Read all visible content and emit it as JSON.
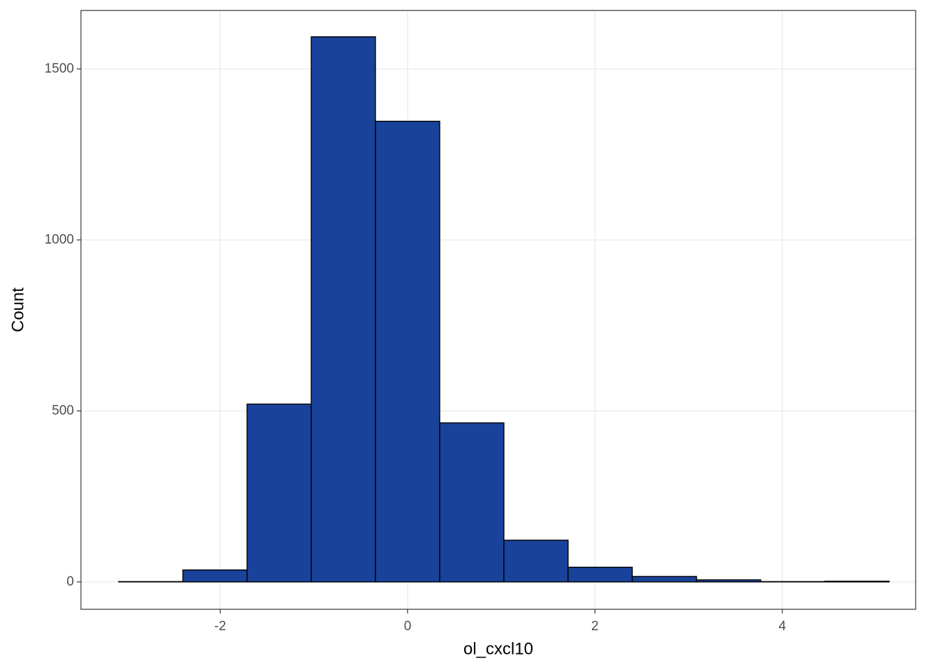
{
  "chart_data": {
    "type": "histogram",
    "x_label": "ol_cxcl10",
    "y_label": "Count",
    "bins": [
      -3.084,
      -2.398,
      -1.713,
      -1.028,
      -0.343,
      0.343,
      1.028,
      1.713,
      2.398,
      3.084,
      3.769,
      4.454,
      5.14
    ],
    "counts": [
      1,
      35,
      520,
      1594,
      1347,
      465,
      122,
      43,
      16,
      6,
      1,
      2
    ],
    "color": "#19439a",
    "xlim": [
      -3.486,
      5.423
    ],
    "xticks": [
      -2,
      0,
      2,
      4
    ],
    "ylim": [
      -80,
      1671
    ],
    "yticks": [
      0,
      500,
      1000,
      1500
    ],
    "grid": true
  }
}
